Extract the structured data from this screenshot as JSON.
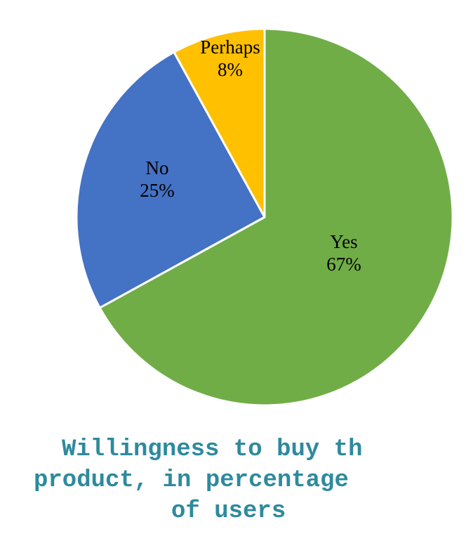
{
  "chart_data": {
    "type": "pie",
    "categories": [
      "Yes",
      "No",
      "Perhaps"
    ],
    "values": [
      67,
      25,
      8
    ],
    "data_labels": [
      "67%",
      "25%",
      "8%"
    ],
    "colors": [
      "#70AD47",
      "#4472C4",
      "#FFC000"
    ],
    "start_angle_deg": 0,
    "direction": "clockwise",
    "slice_border_color": "#ffffff",
    "legend": "none"
  },
  "caption": {
    "lines": [
      "Willingness to buy th",
      "product, in percentage",
      "of users"
    ],
    "color": "#2E8A9E"
  }
}
